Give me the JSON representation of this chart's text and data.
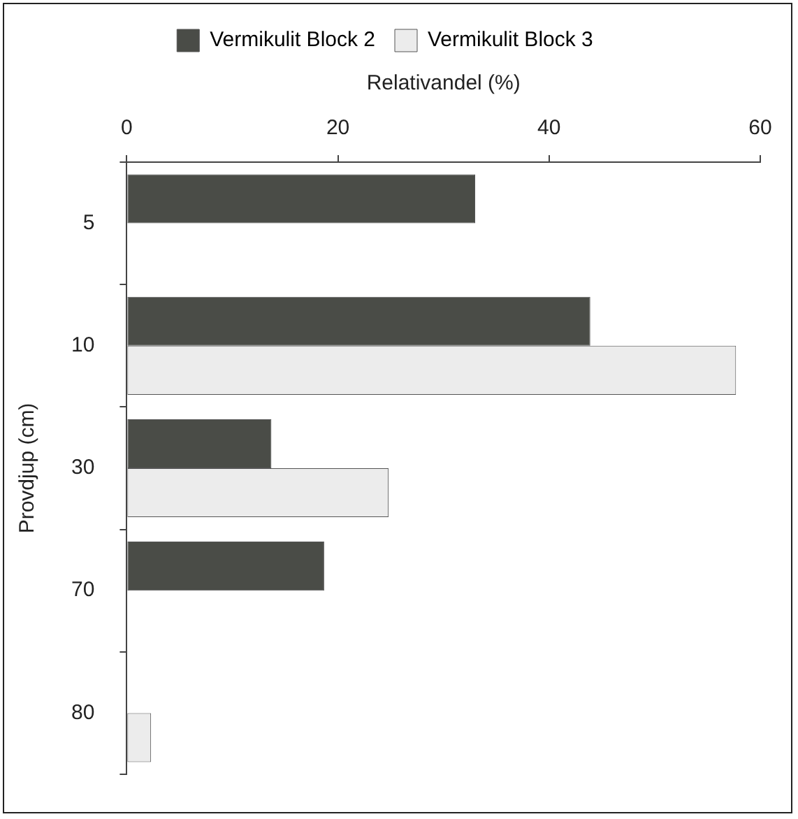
{
  "chart_data": {
    "type": "bar",
    "orientation": "horizontal",
    "xlabel": "Relativandel (%)",
    "ylabel": "Provdjup (cm)",
    "categories": [
      "5",
      "10",
      "30",
      "70",
      "80"
    ],
    "series": [
      {
        "name": "Vermikulit Block 2",
        "color": "#4a4c47",
        "values": [
          33.0,
          43.9,
          13.7,
          18.7,
          null
        ]
      },
      {
        "name": "Vermikulit Block 3",
        "color": "#ececec",
        "values": [
          null,
          57.7,
          24.8,
          null,
          2.3
        ]
      }
    ],
    "xlim": [
      0,
      60
    ],
    "xticks": [
      0,
      20,
      40,
      60
    ],
    "grid": false,
    "legend": "top"
  }
}
